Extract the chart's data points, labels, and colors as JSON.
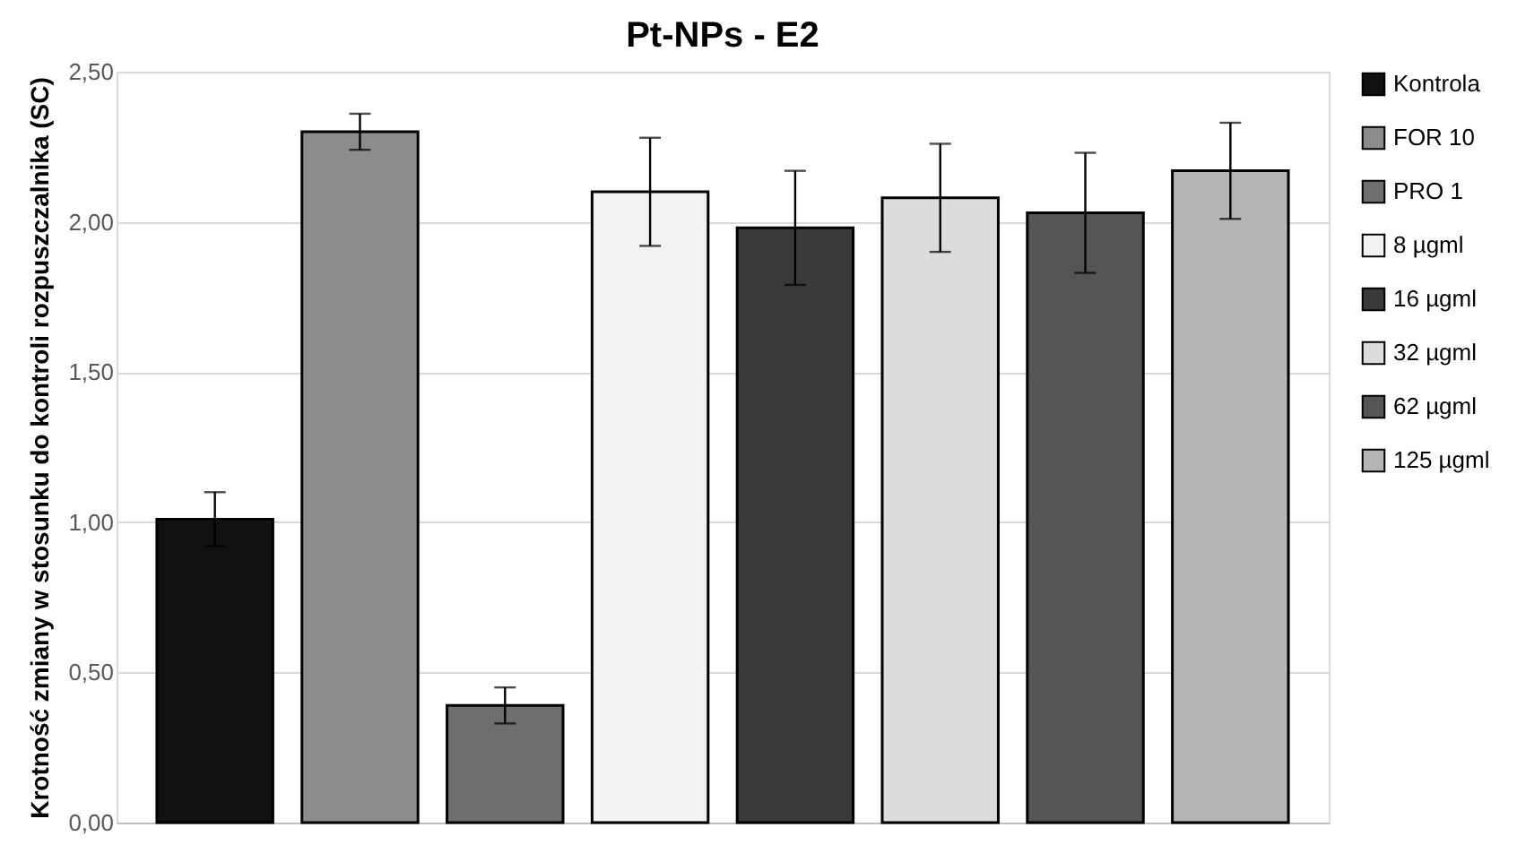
{
  "chart_data": {
    "type": "bar",
    "title": "Pt-NPs - E2",
    "ylabel": "Krotność zmiany w stosunku do kontroli rozpuszczalnika (SC)",
    "categories": [
      null
    ],
    "series": [
      {
        "name": "Kontrola",
        "color": "#111111",
        "values": [
          1.01
        ],
        "errors": [
          0.09
        ]
      },
      {
        "name": "FOR 10",
        "color": "#8c8c8c",
        "values": [
          2.3
        ],
        "errors": [
          0.06
        ]
      },
      {
        "name": "PRO 1",
        "color": "#6e6e6e",
        "values": [
          0.39
        ],
        "errors": [
          0.06
        ]
      },
      {
        "name": "8 µgml",
        "color": "#f2f2f2",
        "values": [
          2.1
        ],
        "errors": [
          0.18
        ]
      },
      {
        "name": "16 µgml",
        "color": "#3a3a3a",
        "values": [
          1.98
        ],
        "errors": [
          0.19
        ]
      },
      {
        "name": "32 µgml",
        "color": "#dcdcdc",
        "values": [
          2.08
        ],
        "errors": [
          0.18
        ]
      },
      {
        "name": "62 µgml",
        "color": "#555555",
        "values": [
          2.03
        ],
        "errors": [
          0.2
        ]
      },
      {
        "name": "125 µgml",
        "color": "#b5b5b5",
        "values": [
          2.17
        ],
        "errors": [
          0.16
        ]
      }
    ],
    "ylim": [
      0,
      2.5
    ],
    "yticks": [
      {
        "value": 0,
        "label": "0,00"
      },
      {
        "value": 0.5,
        "label": "0,50"
      },
      {
        "value": 1,
        "label": "1,00"
      },
      {
        "value": 1.5,
        "label": "1,50"
      },
      {
        "value": 2,
        "label": "2,00"
      },
      {
        "value": 2.5,
        "label": "2,50"
      }
    ],
    "grid": "y",
    "legend": "right",
    "tick_labels": "y"
  }
}
